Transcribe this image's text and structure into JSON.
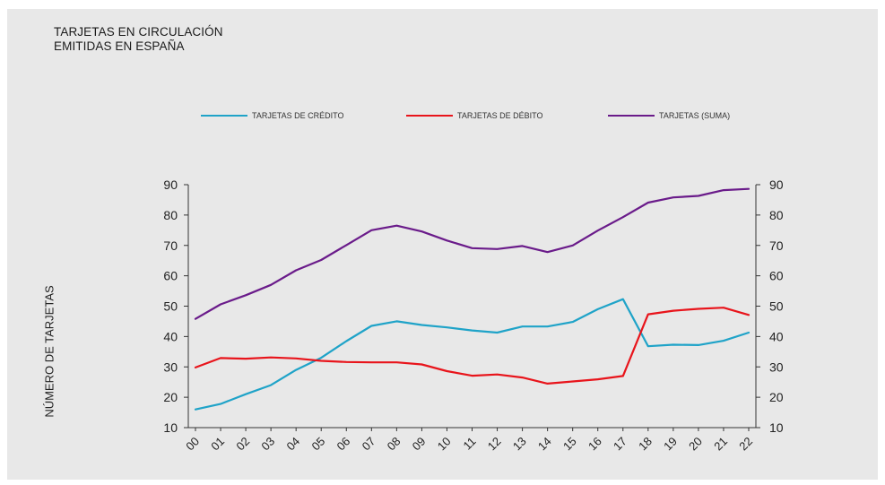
{
  "title_lines": [
    "TARJETAS EN CIRCULACIÓN",
    "EMITIDAS EN ESPAÑA"
  ],
  "chart_data": {
    "type": "line",
    "title": "TARJETAS EN CIRCULACIÓN EMITIDAS EN ESPAÑA",
    "ylabel": "NÚMERO DE TARJETAS",
    "xlabel": "",
    "ylim": [
      10,
      90
    ],
    "y_ticks": [
      10,
      20,
      30,
      40,
      50,
      60,
      70,
      80,
      90
    ],
    "y_axis_right": true,
    "grid": false,
    "legend_position": "top",
    "categories": [
      "00",
      "01",
      "02",
      "03",
      "04",
      "05",
      "06",
      "07",
      "08",
      "09",
      "10",
      "11",
      "12",
      "13",
      "14",
      "15",
      "16",
      "17",
      "18",
      "19",
      "20",
      "21",
      "22"
    ],
    "series": [
      {
        "name": "TARJETAS DE CRÉDITO",
        "color": "#1fa3c8",
        "values": [
          16.0,
          17.8,
          21.0,
          24.0,
          29.0,
          33.0,
          38.5,
          43.5,
          45.0,
          43.8,
          43.0,
          42.0,
          41.3,
          43.3,
          43.3,
          44.8,
          49.0,
          52.3,
          36.8,
          37.3,
          37.2,
          38.6,
          41.3
        ]
      },
      {
        "name": "TARJETAS DE DÉBITO",
        "color": "#e8141b",
        "values": [
          29.8,
          32.9,
          32.7,
          33.1,
          32.8,
          32.0,
          31.6,
          31.5,
          31.5,
          30.8,
          28.6,
          27.1,
          27.5,
          26.5,
          24.5,
          25.2,
          25.9,
          27.0,
          47.3,
          48.5,
          49.1,
          49.5,
          47.1
        ]
      },
      {
        "name": "TARJETAS (SUMA)",
        "color": "#6a1b8a",
        "values": [
          45.8,
          50.6,
          53.6,
          57.0,
          61.8,
          65.2,
          70.1,
          75.0,
          76.5,
          74.6,
          71.6,
          69.1,
          68.8,
          69.8,
          67.8,
          70.0,
          74.9,
          79.3,
          84.1,
          85.8,
          86.3,
          88.2,
          88.6
        ]
      }
    ]
  }
}
